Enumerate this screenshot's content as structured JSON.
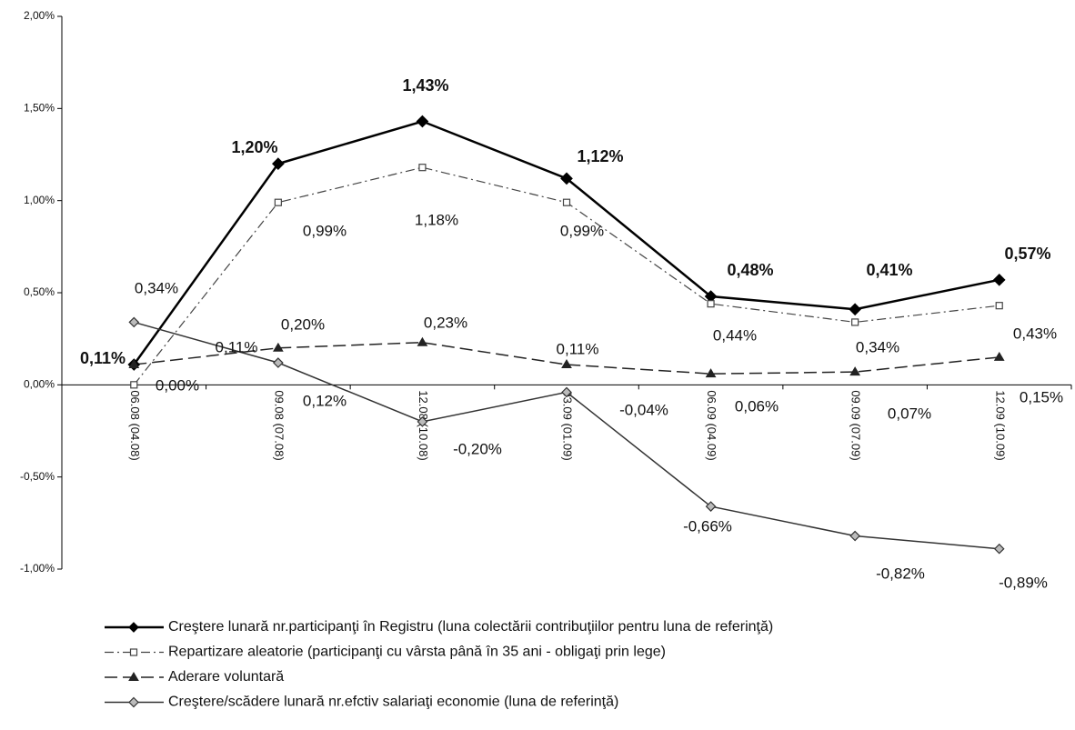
{
  "chart_data": {
    "type": "line",
    "categories": [
      "06.08 (04.08)",
      "09.08 (07.08)",
      "12.08 (10.08)",
      "03.09 (01.09)",
      "06.09 (04.09)",
      "09.09 (07.09)",
      "12.09 (10.09)"
    ],
    "ylim": [
      -1,
      2
    ],
    "yticks": [
      {
        "value": -1,
        "label": "-1,00%"
      },
      {
        "value": -0.5,
        "label": "-0,50%"
      },
      {
        "value": 0,
        "label": "0,00%"
      },
      {
        "value": 0.5,
        "label": "0,50%"
      },
      {
        "value": 1,
        "label": "1,00%"
      },
      {
        "value": 1.5,
        "label": "1,50%"
      },
      {
        "value": 2,
        "label": "2,00%"
      }
    ],
    "grid": false,
    "legend": "bottom",
    "series": [
      {
        "name": "Creştere lunară nr.participanţi în Registru (luna colectării contribuţiilor pentru luna de referinţă)",
        "color": "#000000",
        "values": [
          0.11,
          1.2,
          1.43,
          1.12,
          0.48,
          0.41,
          0.57
        ],
        "value_labels": [
          "0,11%",
          "1,20%",
          "1,43%",
          "1,12%",
          "0,48%",
          "0,41%",
          "0,57%"
        ]
      },
      {
        "name": "Repartizare aleatorie (participanţi cu vârsta până în 35 ani - obligaţi prin lege)",
        "color": "#444444",
        "values": [
          0.0,
          0.99,
          1.18,
          0.99,
          0.44,
          0.34,
          0.43
        ],
        "value_labels": [
          "0,00%",
          "0,99%",
          "1,18%",
          "0,99%",
          "0,44%",
          "0,34%",
          "0,43%"
        ]
      },
      {
        "name": "Aderare voluntară",
        "color": "#222222",
        "values": [
          0.11,
          0.2,
          0.23,
          0.11,
          0.06,
          0.07,
          0.15
        ],
        "value_labels": [
          "0,11%",
          "0,20%",
          "0,23%",
          "0,11%",
          "0,06%",
          "0,07%",
          "0,15%"
        ]
      },
      {
        "name": "Creştere/scădere lunară nr.efctiv salariaţi economie (luna de referinţă)",
        "color": "#333333",
        "values": [
          0.34,
          0.12,
          -0.2,
          -0.04,
          -0.66,
          -0.82,
          -0.89
        ],
        "value_labels": [
          "0,34%",
          "0,12%",
          "-0,20%",
          "-0,04%",
          "-0,66%",
          "-0,82%",
          "-0,89%"
        ]
      }
    ]
  }
}
